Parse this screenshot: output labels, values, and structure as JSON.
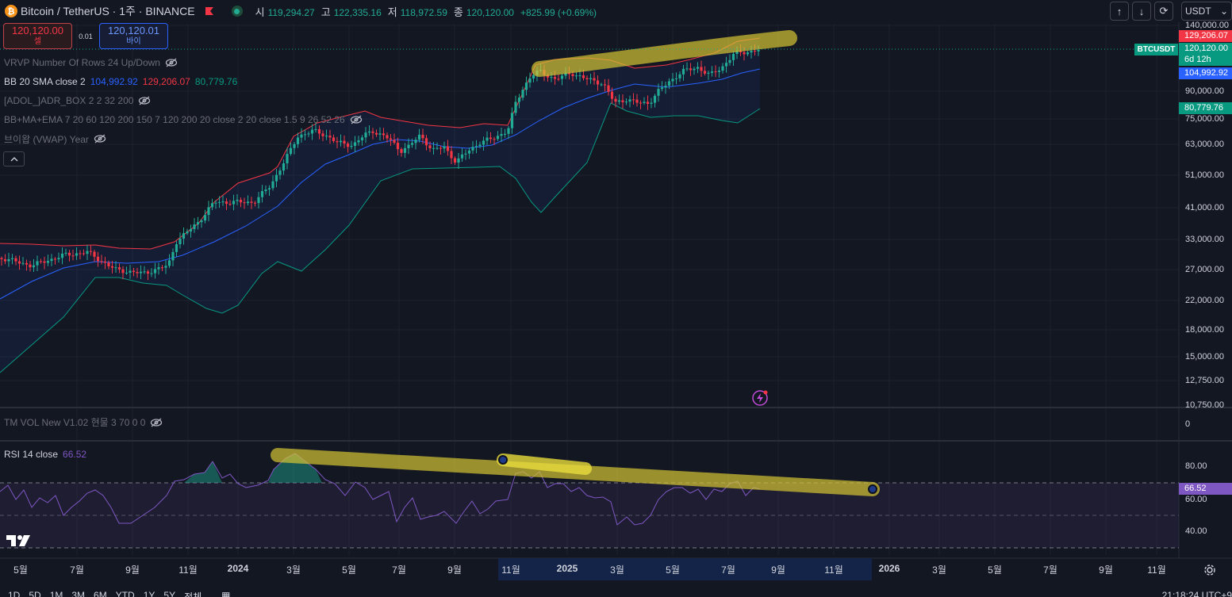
{
  "header": {
    "symbol_title": "Bitcoin / TetherUS · 1주 · BINANCE",
    "coin_glyph": "₿",
    "ohlc": [
      {
        "key": "시",
        "value": "119,294.27"
      },
      {
        "key": "고",
        "value": "122,335.16"
      },
      {
        "key": "저",
        "value": "118,972.59"
      },
      {
        "key": "종",
        "value": "120,120.00"
      }
    ],
    "change": "+825.99 (+0.69%)",
    "currency": "USDT"
  },
  "trade": {
    "sell_price": "120,120.00",
    "sell_label": "셀",
    "spread": "0.01",
    "buy_price": "120,120.01",
    "buy_label": "바이"
  },
  "indicators": [
    {
      "name": "VRVP Number Of Rows 24 Up/Down",
      "dim": true,
      "hidden": true
    },
    {
      "name": "BB 20 SMA close 2",
      "dim": false,
      "hidden": false,
      "values": [
        "104,992.92",
        "129,206.07",
        "80,779.76"
      ]
    },
    {
      "name": "[ADOL_]ADR_BOX 2 2 32 200",
      "dim": true,
      "hidden": true
    },
    {
      "name": "BB+MA+EMA 7 20 60 120 200 150 7 120 200 20 close 2 20 close 1.5 9 26 52 26",
      "dim": true,
      "hidden": true
    },
    {
      "name": "브이왑 (VWAP) Year",
      "dim": true,
      "hidden": true
    }
  ],
  "vol_pane": {
    "name": "TM VOL New V1.02 현물 3 70 0 0",
    "zero": "0"
  },
  "rsi_pane": {
    "name": "RSI 14 close",
    "value": "66.52"
  },
  "price_axis": [
    "140,000.00",
    "90,000.00",
    "75,000.00",
    "63,000.00",
    "51,000.00",
    "41,000.00",
    "33,000.00",
    "27,000.00",
    "22,000.00",
    "18,000.00",
    "15,000.00",
    "12,750.00",
    "10,750.00"
  ],
  "price_tags": {
    "upper": "129,206.07",
    "last": "120,120.00",
    "countdown": "6d 12h",
    "basis": "104,992.92",
    "lower": "80,779.76",
    "symbol": "BTCUSDT"
  },
  "rsi_axis": {
    "upper": "80.00",
    "current": "66.52",
    "mid": "60.00",
    "lower": "40.00"
  },
  "x_axis": [
    {
      "label": "5월",
      "year": false
    },
    {
      "label": "7월",
      "year": false
    },
    {
      "label": "9월",
      "year": false
    },
    {
      "label": "11월",
      "year": false
    },
    {
      "label": "2024",
      "year": true
    },
    {
      "label": "3월",
      "year": false
    },
    {
      "label": "5월",
      "year": false
    },
    {
      "label": "7월",
      "year": false
    },
    {
      "label": "9월",
      "year": false
    },
    {
      "label": "11월",
      "year": false
    },
    {
      "label": "2025",
      "year": true
    },
    {
      "label": "3월",
      "year": false
    },
    {
      "label": "5월",
      "year": false
    },
    {
      "label": "7월",
      "year": false
    },
    {
      "label": "9월",
      "year": false
    },
    {
      "label": "11월",
      "year": false
    },
    {
      "label": "2026",
      "year": true
    },
    {
      "label": "3월",
      "year": false
    },
    {
      "label": "5월",
      "year": false
    },
    {
      "label": "7월",
      "year": false
    },
    {
      "label": "9월",
      "year": false
    },
    {
      "label": "11월",
      "year": false
    }
  ],
  "timeframes": [
    "1D",
    "5D",
    "1M",
    "3M",
    "6M",
    "YTD",
    "1Y",
    "5Y",
    "전체"
  ],
  "clock": "21:18:24 UTC+9",
  "colors": {
    "up": "#22ab94",
    "down": "#f23645",
    "basis": "#2962ff",
    "upper_band": "#f23645",
    "lower_band": "#089981",
    "rsi": "#7e57c2",
    "highlight": "#d4c533"
  },
  "chart_data": {
    "type": "candlestick",
    "symbol": "BTCUSDT",
    "interval": "1W",
    "price_scale": "log",
    "ylim": [
      10750,
      140000
    ],
    "bollinger": {
      "period": 20,
      "basis": 104992.92,
      "upper": 129206.07,
      "lower": 80779.76
    },
    "close": 120120.0,
    "close_series": [
      {
        "t": "2023-04",
        "v": 29500
      },
      {
        "t": "2023-06",
        "v": 27000
      },
      {
        "t": "2023-08",
        "v": 26000
      },
      {
        "t": "2023-10",
        "v": 34000
      },
      {
        "t": "2023-12",
        "v": 43000
      },
      {
        "t": "2024-02",
        "v": 52000
      },
      {
        "t": "2024-03",
        "v": 68000
      },
      {
        "t": "2024-05",
        "v": 67000
      },
      {
        "t": "2024-07",
        "v": 58000
      },
      {
        "t": "2024-09",
        "v": 60000
      },
      {
        "t": "2024-11",
        "v": 90000
      },
      {
        "t": "2025-01",
        "v": 102000
      },
      {
        "t": "2025-03",
        "v": 84000
      },
      {
        "t": "2025-05",
        "v": 105000
      },
      {
        "t": "2025-07",
        "v": 118000
      },
      {
        "t": "2025-08",
        "v": 120120
      }
    ],
    "rsi": {
      "period": 14,
      "value": 66.52,
      "levels": [
        70,
        50,
        30
      ]
    }
  }
}
